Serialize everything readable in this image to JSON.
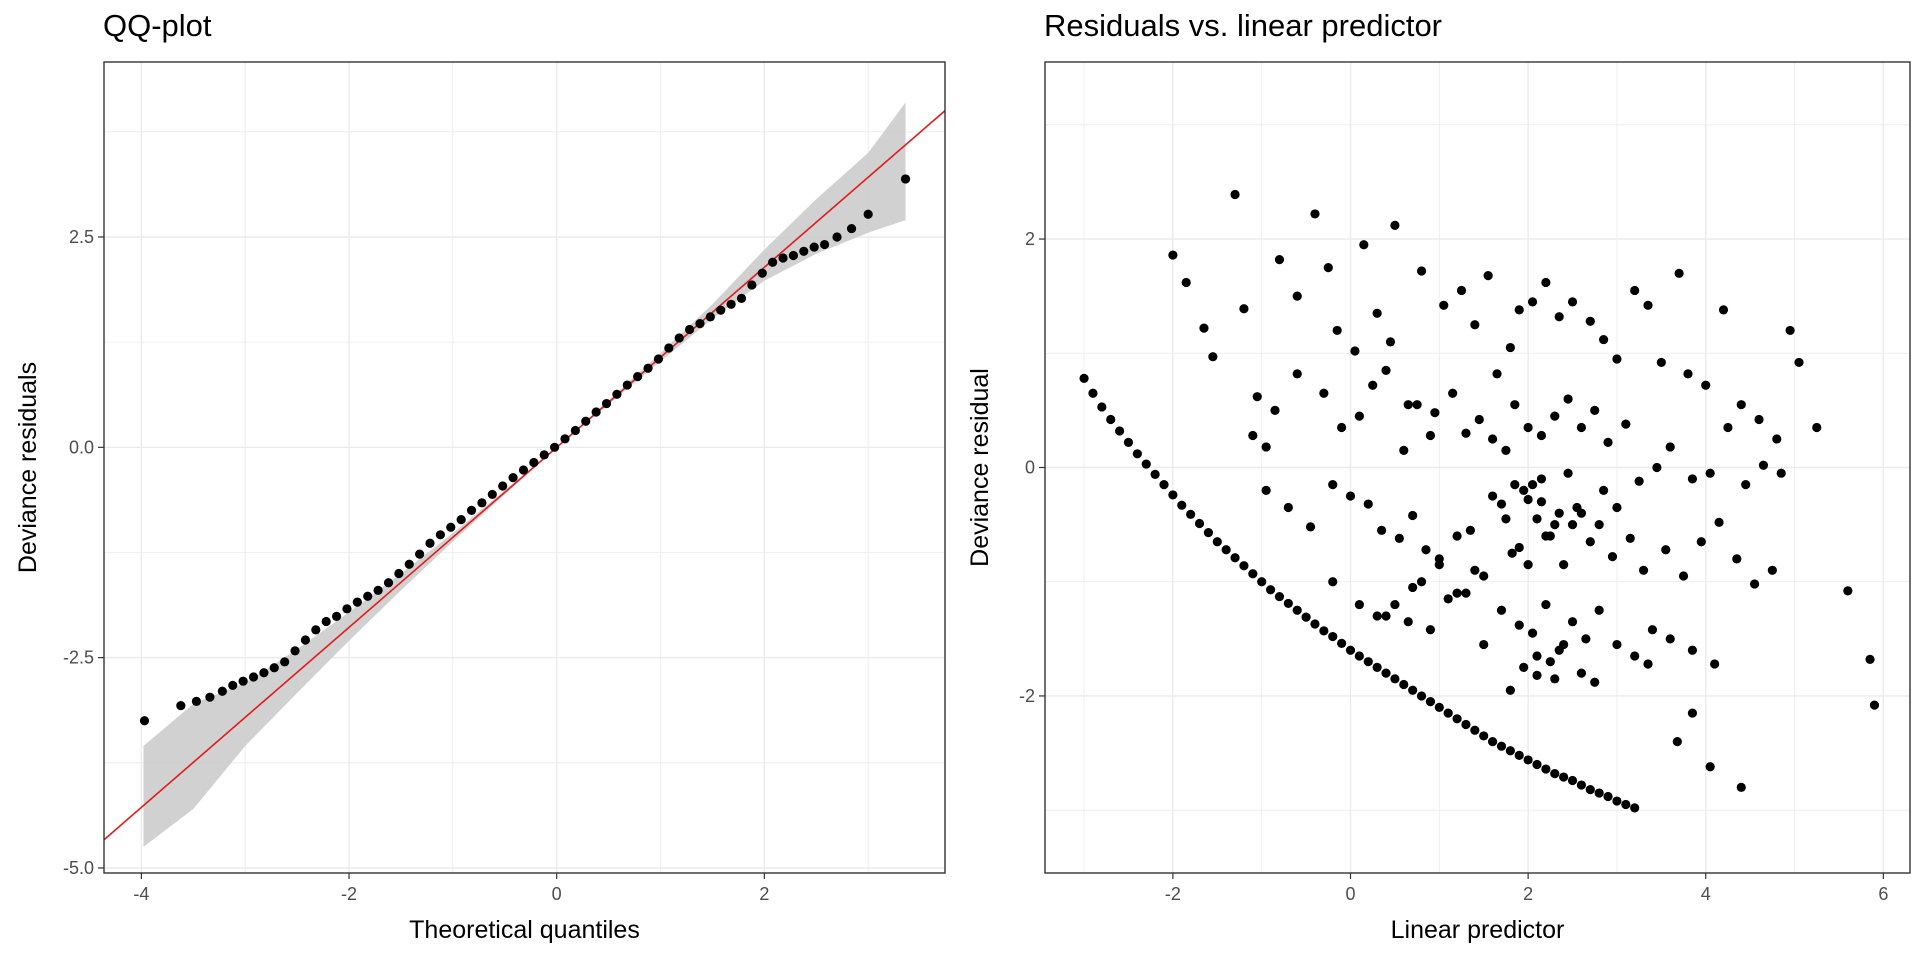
{
  "chart_data": [
    {
      "type": "scatter",
      "title": "QQ-plot",
      "xlabel": "Theoretical quantiles",
      "ylabel": "Deviance residuals",
      "xlim": [
        -4.36,
        3.74
      ],
      "ylim": [
        -5.06,
        4.58
      ],
      "x_ticks": [
        -4,
        -2,
        0,
        2
      ],
      "x_tick_labels": [
        "-4",
        "-2",
        "0",
        "2"
      ],
      "y_ticks": [
        -5.0,
        -2.5,
        0.0,
        2.5
      ],
      "y_tick_labels": [
        "-5.0",
        "-2.5",
        "0.0",
        "2.5"
      ],
      "grid": true,
      "reference_line": {
        "intercept": 0.0,
        "slope": 1.07,
        "color": "#e31a1c"
      },
      "confidence_band": {
        "x": [
          -3.98,
          -3.5,
          -3.0,
          -2.5,
          -2.0,
          -1.5,
          -1.0,
          -0.5,
          0.0,
          0.5,
          1.0,
          1.5,
          2.0,
          2.5,
          3.0,
          3.36
        ],
        "lower": [
          -4.75,
          -4.3,
          -3.55,
          -2.92,
          -2.3,
          -1.7,
          -1.12,
          -0.56,
          0.0,
          0.51,
          1.02,
          1.53,
          1.98,
          2.3,
          2.55,
          2.7
        ],
        "upper": [
          -3.55,
          -3.05,
          -2.8,
          -2.4,
          -1.96,
          -1.5,
          -1.02,
          -0.51,
          0.0,
          0.56,
          1.12,
          1.7,
          2.35,
          2.95,
          3.5,
          4.1
        ],
        "color": "#cccccc"
      },
      "points": {
        "x": [
          -3.97,
          -3.62,
          -3.47,
          -3.34,
          -3.22,
          -3.12,
          -3.02,
          -2.92,
          -2.82,
          -2.72,
          -2.62,
          -2.52,
          -2.42,
          -2.32,
          -2.22,
          -2.12,
          -2.02,
          -1.92,
          -1.82,
          -1.72,
          -1.62,
          -1.52,
          -1.42,
          -1.32,
          -1.22,
          -1.12,
          -1.02,
          -0.92,
          -0.82,
          -0.72,
          -0.62,
          -0.52,
          -0.42,
          -0.32,
          -0.22,
          -0.12,
          -0.02,
          0.08,
          0.18,
          0.28,
          0.38,
          0.48,
          0.58,
          0.68,
          0.78,
          0.88,
          0.98,
          1.08,
          1.18,
          1.28,
          1.38,
          1.48,
          1.58,
          1.68,
          1.78,
          1.88,
          1.98,
          2.08,
          2.18,
          2.28,
          2.38,
          2.48,
          2.58,
          2.7,
          2.84,
          3.0,
          3.36
        ],
        "y": [
          -3.25,
          -3.07,
          -3.02,
          -2.97,
          -2.9,
          -2.83,
          -2.78,
          -2.73,
          -2.68,
          -2.62,
          -2.55,
          -2.42,
          -2.29,
          -2.17,
          -2.07,
          -2.01,
          -1.92,
          -1.84,
          -1.77,
          -1.7,
          -1.61,
          -1.5,
          -1.39,
          -1.27,
          -1.14,
          -1.04,
          -0.95,
          -0.86,
          -0.75,
          -0.66,
          -0.56,
          -0.46,
          -0.36,
          -0.27,
          -0.18,
          -0.09,
          0.0,
          0.1,
          0.2,
          0.31,
          0.42,
          0.52,
          0.63,
          0.74,
          0.84,
          0.94,
          1.05,
          1.18,
          1.3,
          1.4,
          1.47,
          1.55,
          1.63,
          1.7,
          1.77,
          1.93,
          2.07,
          2.2,
          2.25,
          2.28,
          2.33,
          2.38,
          2.41,
          2.5,
          2.6,
          2.77,
          3.19
        ]
      }
    },
    {
      "type": "scatter",
      "title": "Residuals vs. linear predictor",
      "xlabel": "Linear predictor",
      "ylabel": "Deviance residual",
      "xlim": [
        -3.44,
        6.3
      ],
      "ylim": [
        -3.55,
        3.55
      ],
      "x_ticks": [
        -2,
        0,
        2,
        4,
        6
      ],
      "x_tick_labels": [
        "-2",
        "0",
        "2",
        "4",
        "6"
      ],
      "y_ticks": [
        -2,
        0,
        2
      ],
      "y_tick_labels": [
        "-2",
        "0",
        "2"
      ],
      "grid": true,
      "curve_points": {
        "x": [
          -3.0,
          -2.9,
          -2.8,
          -2.7,
          -2.6,
          -2.5,
          -2.4,
          -2.3,
          -2.2,
          -2.1,
          -2.0,
          -1.9,
          -1.8,
          -1.7,
          -1.6,
          -1.5,
          -1.4,
          -1.3,
          -1.2,
          -1.1,
          -1.0,
          -0.9,
          -0.8,
          -0.7,
          -0.6,
          -0.5,
          -0.4,
          -0.3,
          -0.2,
          -0.1,
          0.0,
          0.1,
          0.2,
          0.3,
          0.4,
          0.5,
          0.6,
          0.7,
          0.8,
          0.9,
          1.0,
          1.1,
          1.2,
          1.3,
          1.4,
          1.5,
          1.6,
          1.7,
          1.8,
          1.9,
          2.0,
          2.1,
          2.2,
          2.3,
          2.4,
          2.5,
          2.6,
          2.7,
          2.8,
          2.9,
          3.0,
          3.1,
          3.2
        ],
        "y": [
          0.78,
          0.65,
          0.53,
          0.42,
          0.32,
          0.22,
          0.12,
          0.03,
          -0.06,
          -0.15,
          -0.24,
          -0.33,
          -0.41,
          -0.49,
          -0.57,
          -0.65,
          -0.72,
          -0.79,
          -0.86,
          -0.93,
          -1.0,
          -1.07,
          -1.13,
          -1.19,
          -1.25,
          -1.31,
          -1.37,
          -1.43,
          -1.48,
          -1.54,
          -1.6,
          -1.65,
          -1.7,
          -1.75,
          -1.8,
          -1.85,
          -1.9,
          -1.95,
          -2.0,
          -2.05,
          -2.1,
          -2.15,
          -2.2,
          -2.25,
          -2.3,
          -2.35,
          -2.4,
          -2.44,
          -2.48,
          -2.52,
          -2.56,
          -2.6,
          -2.64,
          -2.68,
          -2.71,
          -2.74,
          -2.78,
          -2.82,
          -2.85,
          -2.88,
          -2.92,
          -2.95,
          -2.98
        ]
      },
      "points": {
        "x": [
          -2.0,
          -1.85,
          -1.65,
          -1.55,
          -1.3,
          -1.2,
          -1.05,
          -0.95,
          -0.8,
          -0.6,
          -0.4,
          -0.25,
          -0.15,
          0.05,
          0.15,
          0.3,
          0.45,
          0.5,
          0.65,
          0.8,
          0.9,
          1.05,
          1.25,
          1.4,
          1.55,
          1.65,
          1.8,
          1.9,
          2.05,
          2.2,
          2.35,
          2.5,
          2.7,
          2.85,
          3.0,
          3.2,
          3.35,
          3.5,
          3.7,
          3.8,
          4.0,
          4.2,
          4.4,
          4.6,
          4.8,
          4.95,
          5.05,
          5.25,
          5.6,
          5.85,
          5.9,
          -1.1,
          -0.85,
          -0.6,
          -0.3,
          -0.1,
          0.1,
          0.25,
          0.4,
          0.6,
          0.75,
          0.95,
          1.15,
          1.3,
          1.45,
          1.6,
          1.75,
          1.85,
          2.0,
          2.15,
          2.3,
          2.45,
          2.6,
          2.75,
          2.9,
          3.1,
          3.25,
          3.45,
          3.6,
          3.85,
          4.05,
          4.25,
          4.45,
          4.65,
          4.85,
          -0.95,
          -0.7,
          -0.45,
          -0.2,
          0.0,
          0.2,
          0.35,
          0.55,
          0.7,
          0.85,
          1.0,
          1.2,
          1.35,
          1.5,
          1.7,
          1.82,
          1.95,
          2.1,
          2.25,
          2.4,
          2.55,
          2.8,
          2.95,
          3.15,
          3.3,
          3.55,
          3.75,
          3.95,
          4.15,
          4.35,
          4.55,
          4.75,
          0.3,
          0.5,
          0.7,
          0.9,
          1.1,
          1.3,
          1.5,
          1.7,
          1.9,
          2.05,
          2.2,
          2.35,
          2.5,
          2.65,
          2.8,
          3.0,
          3.2,
          3.4,
          3.6,
          3.85,
          4.1,
          1.8,
          1.95,
          2.1,
          2.25,
          2.4,
          2.6,
          2.75,
          3.35,
          3.68,
          3.85,
          4.05,
          4.4,
          2.0,
          2.2,
          1.6,
          1.75,
          1.9,
          2.05,
          2.15,
          2.3,
          2.45,
          2.6,
          2.7,
          2.85,
          3.0,
          0.65,
          0.8,
          1.0,
          1.2,
          1.4,
          -0.2,
          0.1,
          0.4,
          2.1,
          2.3,
          1.85,
          2.0,
          2.15,
          2.35,
          2.5
        ],
        "y": [
          1.86,
          1.62,
          1.22,
          0.97,
          2.39,
          1.39,
          0.62,
          0.18,
          1.82,
          1.5,
          2.22,
          1.75,
          1.2,
          1.02,
          1.95,
          1.35,
          1.1,
          2.12,
          0.55,
          1.72,
          0.28,
          1.42,
          1.55,
          1.25,
          1.68,
          0.82,
          1.05,
          1.38,
          1.45,
          1.62,
          1.32,
          1.45,
          1.28,
          1.12,
          0.95,
          1.55,
          1.42,
          0.92,
          1.7,
          0.82,
          0.72,
          1.38,
          0.55,
          0.42,
          0.25,
          1.2,
          0.92,
          0.35,
          -1.08,
          -1.68,
          -2.08,
          0.28,
          0.5,
          0.82,
          0.65,
          0.35,
          0.45,
          0.72,
          0.85,
          0.15,
          0.55,
          0.48,
          0.65,
          0.3,
          0.42,
          0.25,
          0.15,
          0.55,
          0.35,
          0.28,
          0.45,
          0.6,
          0.35,
          0.5,
          0.22,
          0.38,
          -0.12,
          0.0,
          0.18,
          -0.1,
          -0.05,
          0.35,
          -0.15,
          0.02,
          -0.05,
          -0.2,
          -0.35,
          -0.52,
          -0.15,
          -0.25,
          -0.32,
          -0.55,
          -0.62,
          -0.42,
          -0.72,
          -0.85,
          -0.6,
          -0.55,
          -0.95,
          -0.32,
          -0.75,
          -0.2,
          -0.45,
          -0.6,
          -0.85,
          -0.35,
          -0.5,
          -0.78,
          -0.62,
          -0.9,
          -0.72,
          -0.95,
          -0.65,
          -0.48,
          -0.8,
          -1.02,
          -0.9,
          -1.3,
          -1.2,
          -1.05,
          -1.42,
          -1.15,
          -1.1,
          -1.55,
          -1.25,
          -1.38,
          -1.45,
          -1.2,
          -1.6,
          -1.35,
          -1.5,
          -1.25,
          -1.55,
          -1.65,
          -1.42,
          -1.5,
          -1.6,
          -1.72,
          -1.95,
          -1.75,
          -1.82,
          -1.7,
          -1.55,
          -1.8,
          -1.88,
          -1.72,
          -2.4,
          -2.15,
          -2.62,
          -2.8,
          -0.85,
          -0.6,
          -0.25,
          -0.45,
          -0.7,
          -0.15,
          -0.3,
          -0.5,
          -0.05,
          -0.4,
          -0.65,
          -0.2,
          -0.35,
          -1.35,
          -1.0,
          -0.8,
          -1.1,
          -0.9,
          -1.0,
          -1.2,
          -1.3,
          -1.65,
          -1.85,
          -0.15,
          -0.28,
          -0.1,
          -0.4,
          -0.5
        ]
      }
    }
  ]
}
